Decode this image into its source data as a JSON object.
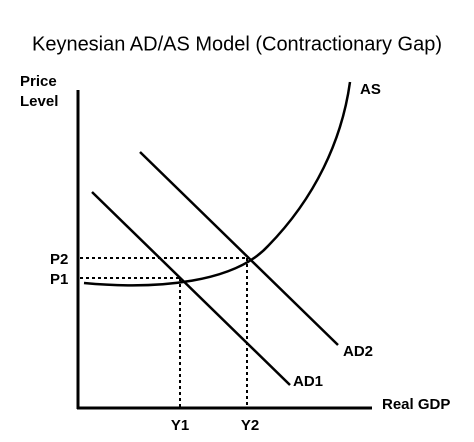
{
  "title": "Keynesian AD/AS Model (Contractionary Gap)",
  "axes": {
    "y_label": [
      "Price",
      "Level"
    ],
    "x_label": "Real GDP"
  },
  "curves": {
    "as": "AS",
    "ad2": "AD2",
    "ad1": "AD1"
  },
  "prices": [
    "P2",
    "P1"
  ],
  "outputs": [
    "Y1",
    "Y2"
  ]
}
